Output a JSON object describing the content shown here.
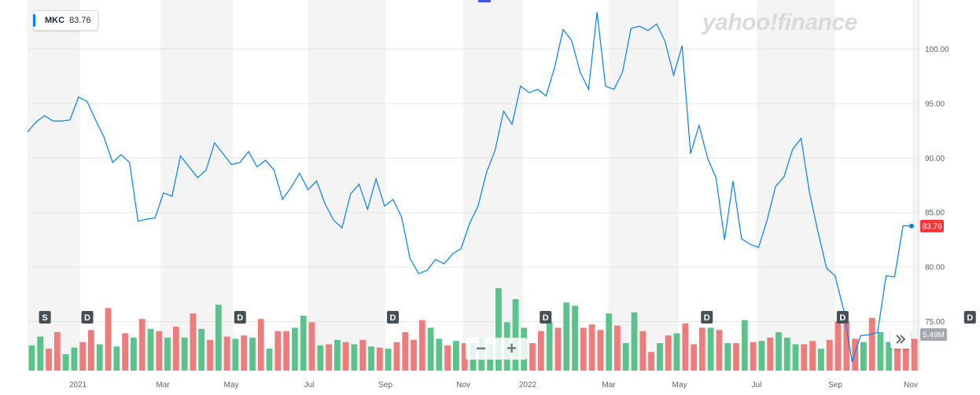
{
  "legend": {
    "ticker": "MKC",
    "price": "83.76"
  },
  "watermark": "yahoo!finance",
  "last_price_label": "83.76",
  "volume_label": "5.49M",
  "zoom": {
    "minus": "−",
    "plus": "+"
  },
  "scroll_icon": "double-chevron-right-icon",
  "colors": {
    "line": "#0081f2",
    "volume_up": "#5ac38a",
    "volume_down": "#f07b7b",
    "price_badge": "#ff333a",
    "band": "#f4f4f4",
    "grid": "#e6e6e6"
  },
  "chart_data": {
    "type": "line",
    "title": "",
    "xlabel": "",
    "ylabel": "",
    "ylim": [
      70.5,
      104.5
    ],
    "yticks": [
      75.0,
      80.0,
      85.0,
      90.0,
      95.0,
      100.0
    ],
    "ytick_labels": [
      "75.00",
      "80.00",
      "85.00",
      "90.00",
      "95.00",
      "100.00"
    ],
    "xtick_labels": [
      "2021",
      "Mar",
      "May",
      "Jul",
      "Sep",
      "Nov",
      "2022",
      "Mar",
      "May",
      "Jul",
      "Sep",
      "Nov"
    ],
    "series": [
      {
        "type": "line",
        "values": [
          92.4,
          93.3,
          93.9,
          93.4,
          93.4,
          93.5,
          95.6,
          95.2,
          93.5,
          91.9,
          89.6,
          90.3,
          89.6,
          84.2,
          84.4,
          84.5,
          86.8,
          86.5,
          90.2,
          89.2,
          88.2,
          88.9,
          91.4,
          90.4,
          89.4,
          89.6,
          90.6,
          89.2,
          89.8,
          88.9,
          86.2,
          87.3,
          88.6,
          87.1,
          87.9,
          85.8,
          84.3,
          83.6,
          86.7,
          87.6,
          85.3,
          88.1,
          85.6,
          86.2,
          84.6,
          80.8,
          79.4,
          79.7,
          80.7,
          80.3,
          81.2,
          81.7,
          84.0,
          85.6,
          88.7,
          90.7,
          94.3,
          93.1,
          96.6,
          96.0,
          96.3,
          95.7,
          98.3,
          101.8,
          100.8,
          97.9,
          96.3,
          103.4,
          96.6,
          96.3,
          97.9,
          101.9,
          102.1,
          101.7,
          102.3,
          100.7,
          97.6,
          100.3,
          90.4,
          93.0,
          90.0,
          88.2,
          82.5,
          87.9,
          82.6,
          82.1,
          81.8,
          84.3,
          87.4,
          88.3,
          90.8,
          91.8,
          86.8,
          83.2,
          79.9,
          79.2,
          76.1,
          71.3,
          73.7,
          73.8,
          74.0,
          79.2,
          79.1,
          83.8,
          83.76
        ]
      }
    ],
    "volume": {
      "values": [
        2.3,
        3.1,
        2.0,
        3.5,
        1.5,
        2.1,
        2.6,
        3.7,
        2.4,
        5.7,
        2.2,
        3.4,
        3.0,
        4.7,
        3.8,
        3.6,
        3.0,
        4.0,
        3.0,
        5.2,
        3.8,
        2.8,
        6.0,
        3.1,
        2.9,
        3.2,
        3.0,
        4.7,
        2.0,
        3.6,
        3.6,
        3.9,
        5.0,
        4.4,
        2.3,
        2.4,
        2.8,
        2.6,
        2.4,
        2.8,
        2.2,
        2.1,
        2.0,
        2.6,
        3.5,
        2.8,
        4.6,
        3.9,
        2.9,
        2.3,
        2.7,
        2.5,
        2.5,
        3.0,
        2.4,
        7.5,
        4.4,
        6.5,
        3.9,
        2.5,
        3.6,
        4.4,
        3.9,
        6.2,
        5.9,
        3.9,
        4.2,
        3.7,
        5.2,
        4.1,
        2.5,
        5.3,
        3.6,
        1.7,
        2.5,
        3.2,
        3.4,
        4.3,
        2.4,
        3.9,
        3.9,
        3.7,
        2.5,
        2.5,
        4.6,
        2.6,
        2.7,
        3.0,
        3.5,
        3.0,
        2.4,
        2.4,
        2.7,
        2.0,
        2.8,
        4.5,
        4.5,
        2.9,
        2.6,
        4.8,
        3.5,
        2.6,
        2.9,
        2.3,
        2.9
      ],
      "up": [
        true,
        true,
        false,
        false,
        true,
        true,
        false,
        false,
        true,
        false,
        true,
        false,
        true,
        false,
        true,
        false,
        true,
        false,
        true,
        false,
        true,
        false,
        true,
        false,
        true,
        false,
        true,
        false,
        true,
        false,
        false,
        true,
        true,
        false,
        true,
        false,
        true,
        false,
        true,
        false,
        true,
        false,
        true,
        false,
        false,
        false,
        false,
        true,
        true,
        false,
        true,
        false,
        true,
        true,
        true,
        true,
        true,
        true,
        true,
        false,
        false,
        true,
        false,
        true,
        true,
        false,
        false,
        false,
        true,
        false,
        true,
        true,
        false,
        false,
        true,
        false,
        true,
        false,
        false,
        false,
        true,
        false,
        true,
        false,
        true,
        false,
        true,
        false,
        true,
        true,
        true,
        false,
        false,
        true,
        false,
        false,
        false,
        false,
        true,
        false,
        true,
        true,
        false,
        false,
        false
      ]
    },
    "events": [
      {
        "label": "S",
        "index": 2
      },
      {
        "label": "D",
        "index": 7
      },
      {
        "label": "D",
        "index": 25
      },
      {
        "label": "D",
        "index": 43
      },
      {
        "label": "D",
        "index": 61
      },
      {
        "label": "D",
        "index": 80
      },
      {
        "label": "D",
        "index": 96
      },
      {
        "label": "D",
        "index": 111
      },
      {
        "label": "D",
        "index": 126
      }
    ]
  }
}
